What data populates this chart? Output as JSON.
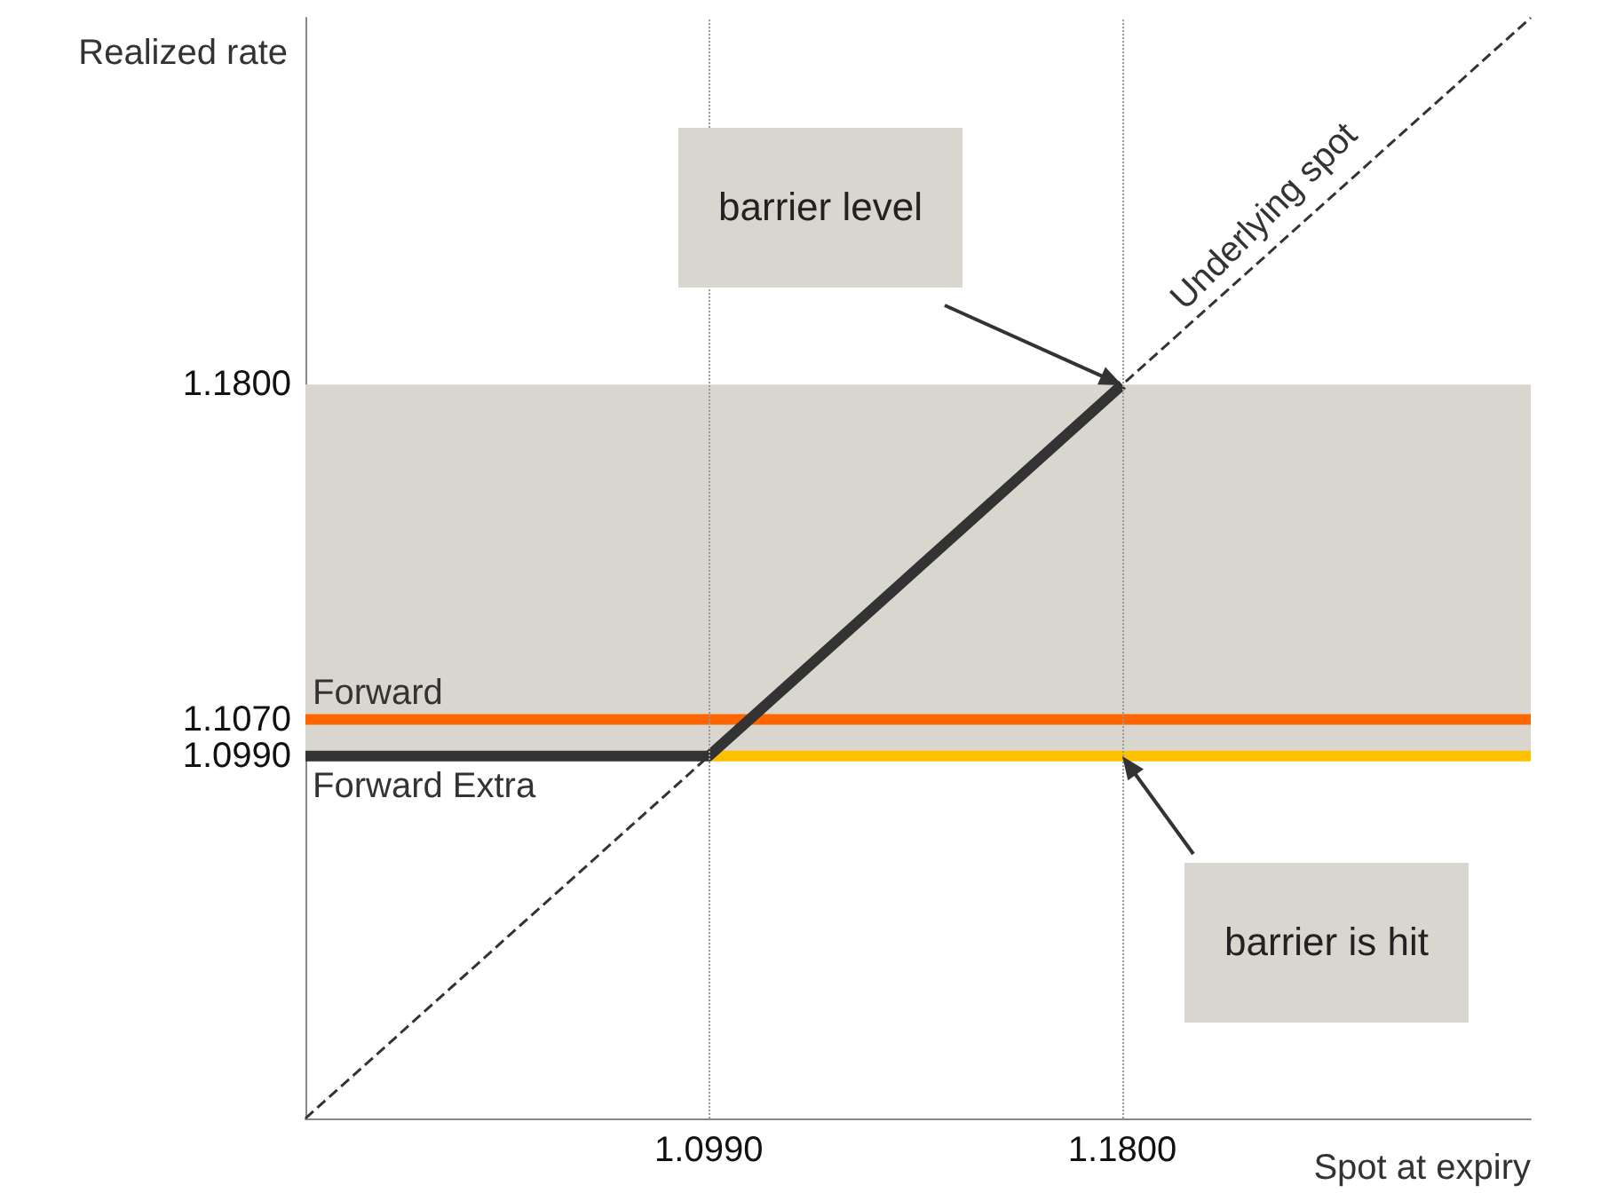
{
  "chart_data": {
    "type": "line",
    "xlabel": "Spot at expiry",
    "ylabel": "Realized rate",
    "xlim": [
      1.02,
      1.26
    ],
    "ylim": [
      1.02,
      1.26
    ],
    "xticks": [
      {
        "value": 1.099,
        "label": "1.0990"
      },
      {
        "value": 1.18,
        "label": "1.1800"
      }
    ],
    "yticks": [
      {
        "value": 1.099,
        "label": "1.0990"
      },
      {
        "value": 1.107,
        "label": "1.1070"
      },
      {
        "value": 1.18,
        "label": "1.1800"
      }
    ],
    "series": [
      {
        "name": "Underlying spot",
        "color": "#333333",
        "line_style": "dashed",
        "x": [
          1.02,
          1.26
        ],
        "values": [
          1.02,
          1.26
        ]
      },
      {
        "name": "Forward",
        "color": "#ff6600",
        "x": [
          1.02,
          1.26
        ],
        "values": [
          1.107,
          1.107
        ]
      },
      {
        "color": "#ffc000",
        "x": [
          1.099,
          1.26
        ],
        "values": [
          1.099,
          1.099
        ]
      },
      {
        "name": "Forward Extra",
        "color": "#333333",
        "x": [
          1.02,
          1.099,
          1.18
        ],
        "values": [
          1.099,
          1.099,
          1.18
        ]
      }
    ],
    "bands": [
      {
        "axis": "y",
        "from": 1.099,
        "to": 1.18,
        "color": "#d9d6cf"
      }
    ],
    "ref_lines": [
      {
        "axis": "x",
        "value": 1.099,
        "color": "#999999",
        "line_style": "dotted"
      },
      {
        "axis": "x",
        "value": 1.18,
        "color": "#999999",
        "line_style": "dotted"
      }
    ],
    "annotations": [
      "barrier level",
      "barrier is hit"
    ],
    "grid": false,
    "legend": false,
    "marker": "none"
  }
}
